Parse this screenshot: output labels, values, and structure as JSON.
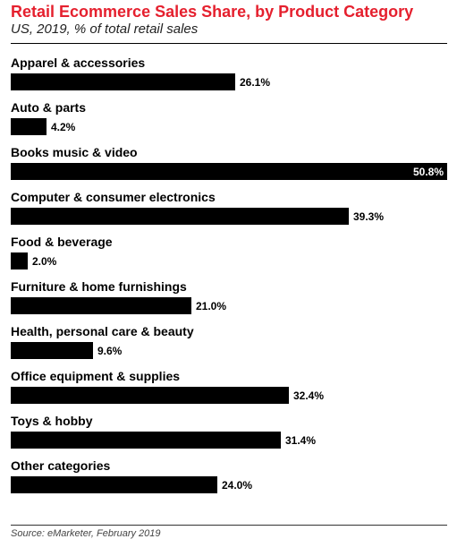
{
  "colors": {
    "title": "#e5202e",
    "bar": "#000000",
    "text": "#000000",
    "value_inside": "#ffffff"
  },
  "source": "Source: eMarketer, February 2019",
  "chart_data": {
    "type": "bar",
    "orientation": "horizontal",
    "title": "Retail Ecommerce Sales Share, by Product Category",
    "subtitle": "US, 2019, % of total retail sales",
    "categories": [
      "Apparel & accessories",
      "Auto & parts",
      "Books music & video",
      "Computer & consumer electronics",
      "Food & beverage",
      "Furniture & home furnishings",
      "Health, personal care & beauty",
      "Office equipment & supplies",
      "Toys & hobby",
      "Other categories"
    ],
    "values": [
      26.1,
      4.2,
      50.8,
      39.3,
      2.0,
      21.0,
      9.6,
      32.4,
      31.4,
      24.0
    ],
    "value_labels": [
      "26.1%",
      "4.2%",
      "50.8%",
      "39.3%",
      "2.0%",
      "21.0%",
      "9.6%",
      "32.4%",
      "31.4%",
      "24.0%"
    ],
    "xlim": [
      0,
      50.8
    ],
    "grid": false,
    "legend": "none"
  }
}
